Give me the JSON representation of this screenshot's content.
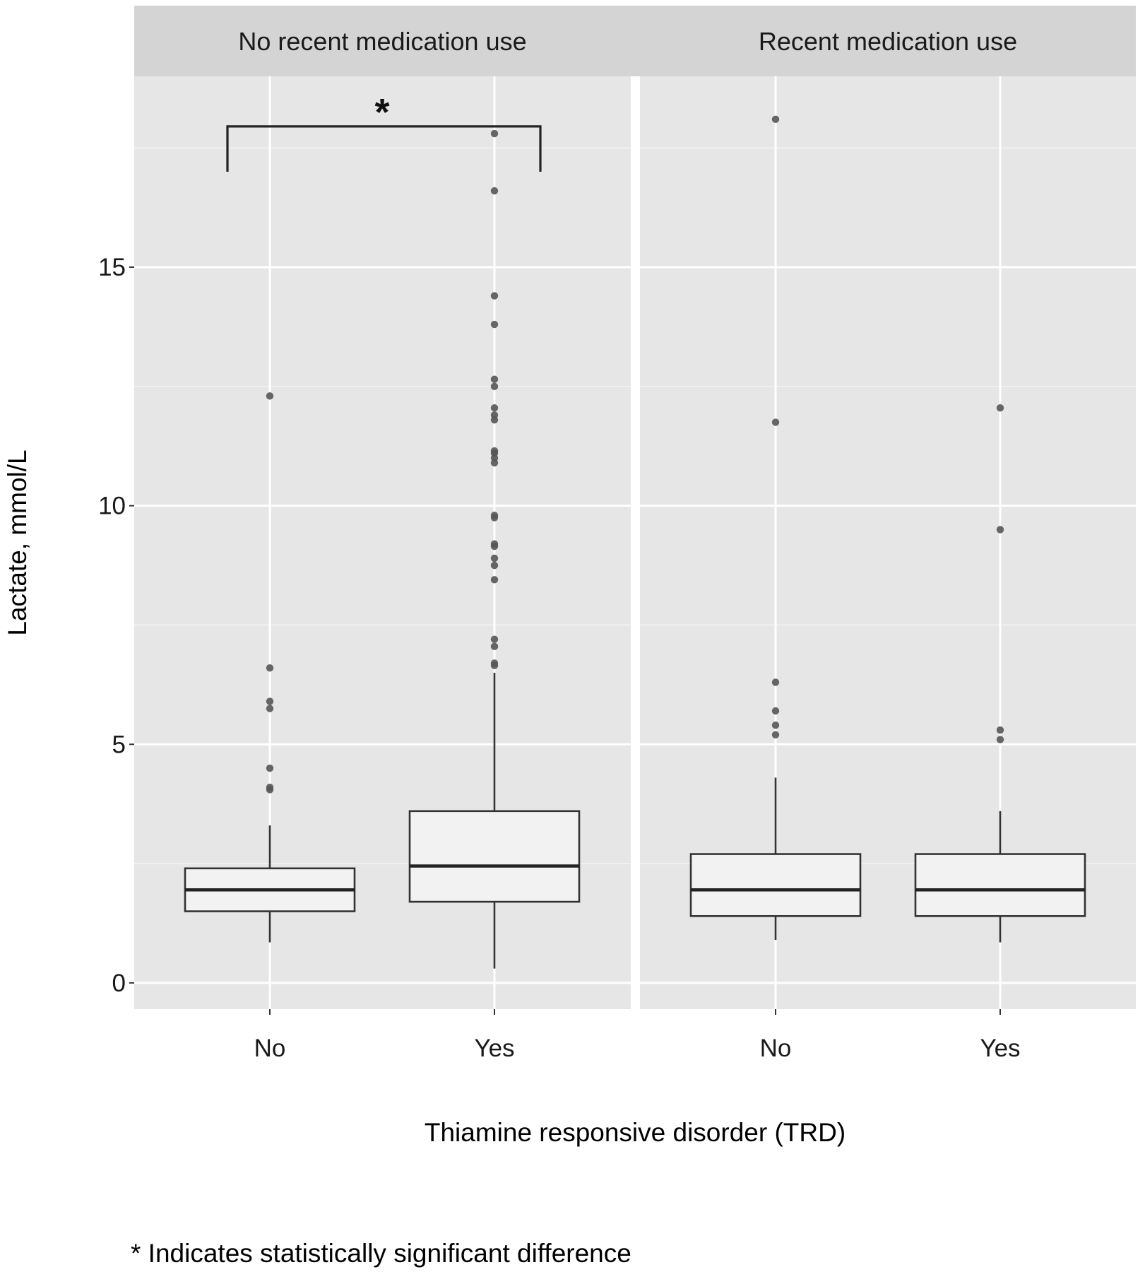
{
  "chart_data": {
    "type": "box",
    "facets": [
      {
        "label": "No recent medication use",
        "groups": [
          {
            "category": "No",
            "whisker_low": 0.85,
            "q1": 1.5,
            "median": 1.95,
            "q3": 2.4,
            "whisker_high": 3.3,
            "outliers": [
              4.05,
              4.1,
              4.5,
              5.75,
              5.9,
              6.6,
              12.3
            ]
          },
          {
            "category": "Yes",
            "whisker_low": 0.3,
            "q1": 1.7,
            "median": 2.45,
            "q3": 3.6,
            "whisker_high": 6.5,
            "outliers": [
              6.65,
              6.7,
              7.05,
              7.2,
              8.45,
              8.75,
              8.9,
              9.15,
              9.2,
              9.75,
              9.8,
              10.9,
              11.0,
              11.1,
              11.15,
              11.8,
              11.9,
              12.05,
              12.5,
              12.65,
              13.8,
              14.4,
              16.6,
              17.8
            ]
          }
        ],
        "significance": {
          "between": [
            "No",
            "Yes"
          ],
          "label": "*"
        }
      },
      {
        "label": "Recent medication use",
        "groups": [
          {
            "category": "No",
            "whisker_low": 0.9,
            "q1": 1.4,
            "median": 1.95,
            "q3": 2.7,
            "whisker_high": 4.3,
            "outliers": [
              5.2,
              5.4,
              5.7,
              6.3,
              11.75,
              18.1
            ]
          },
          {
            "category": "Yes",
            "whisker_low": 0.85,
            "q1": 1.4,
            "median": 1.95,
            "q3": 2.7,
            "whisker_high": 3.6,
            "outliers": [
              5.1,
              5.3,
              9.5,
              12.05
            ]
          }
        ]
      }
    ],
    "ylabel": "Lactate, mmol/L",
    "xlabel": "Thiamine responsive disorder (TRD)",
    "yticks": [
      0,
      5,
      10,
      15
    ],
    "ylim": [
      -0.55,
      19.0
    ],
    "grid": true,
    "footnote": "* Indicates statistically significant difference"
  }
}
